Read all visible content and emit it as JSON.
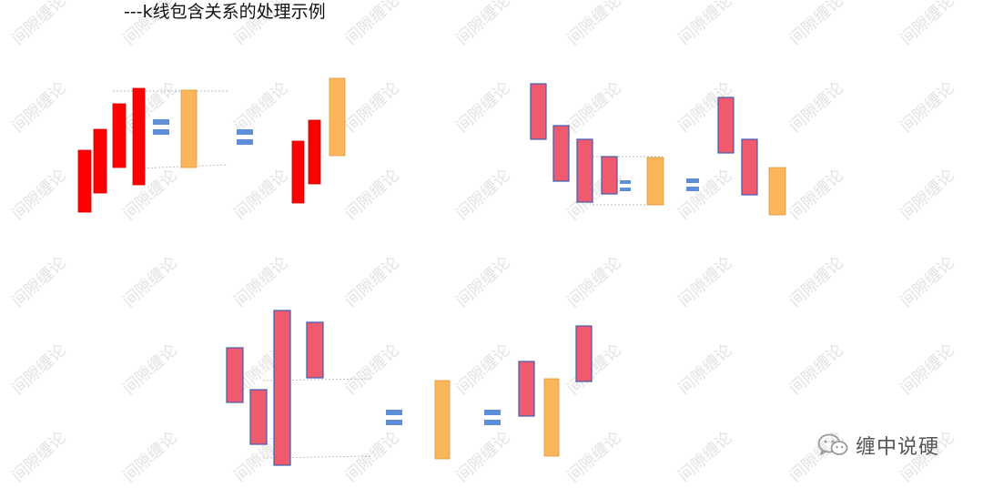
{
  "title": "---k线包含关系的处理示例",
  "watermark_text": "间隙缠论",
  "brand": {
    "name": "缠中说硬",
    "icon": "wechat-icon"
  },
  "colors": {
    "red_bar": "#fe0000",
    "red_bar_edge": "#d00000",
    "pink_bar": "#ef5a6f",
    "pink_bar_edge": "#3f5fb0",
    "orange_bar": "#fbb55a",
    "orange_bar_edge": "#e19a3c",
    "equals_sign": "#5f8fd9"
  }
}
